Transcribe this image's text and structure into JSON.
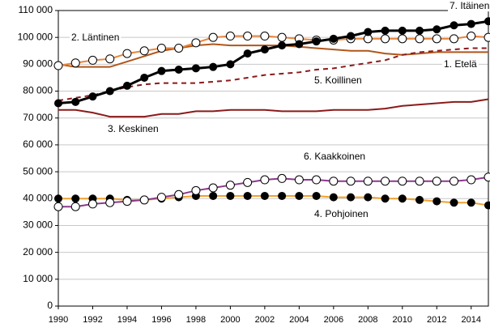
{
  "chart_data": {
    "type": "line",
    "x": [
      1990,
      1991,
      1992,
      1993,
      1994,
      1995,
      1996,
      1997,
      1998,
      1999,
      2000,
      2001,
      2002,
      2003,
      2004,
      2005,
      2006,
      2007,
      2008,
      2009,
      2010,
      2011,
      2012,
      2013,
      2014,
      2015
    ],
    "xlim": [
      1990,
      2015
    ],
    "xticks": [
      1990,
      1992,
      1994,
      1996,
      1998,
      2000,
      2002,
      2004,
      2006,
      2008,
      2010,
      2012,
      2014
    ],
    "ylim": [
      0,
      110000
    ],
    "yticks": [
      {
        "value": 0,
        "label": "0"
      },
      {
        "value": 10000,
        "label": "10 000"
      },
      {
        "value": 20000,
        "label": "20 000"
      },
      {
        "value": 30000,
        "label": "30 000"
      },
      {
        "value": 40000,
        "label": "40 000"
      },
      {
        "value": 50000,
        "label": "50 000"
      },
      {
        "value": 60000,
        "label": "60 000"
      },
      {
        "value": 70000,
        "label": "70 000"
      },
      {
        "value": 80000,
        "label": "80 000"
      },
      {
        "value": 90000,
        "label": "90 000"
      },
      {
        "value": 100000,
        "label": "100 000"
      },
      {
        "value": 110000,
        "label": "110 000"
      }
    ],
    "grid": true,
    "series": [
      {
        "name": "1. Etelä",
        "color": "#b0561c",
        "values": [
          90000,
          89000,
          89000,
          89000,
          91000,
          93000,
          95000,
          96000,
          97000,
          97500,
          97000,
          97000,
          97000,
          97000,
          96500,
          96000,
          95500,
          95000,
          95000,
          94000,
          93500,
          94000,
          94500,
          94500,
          94500,
          94500
        ]
      },
      {
        "name": "2. Läntinen",
        "color": "#e8853f",
        "marker": "open",
        "values": [
          89500,
          90500,
          91500,
          92000,
          94000,
          95000,
          96000,
          96000,
          98000,
          100000,
          100500,
          100500,
          100500,
          100000,
          99500,
          99000,
          99000,
          99500,
          99500,
          99500,
          99500,
          99500,
          99500,
          99500,
          100500,
          100000
        ]
      },
      {
        "name": "3. Keskinen",
        "color": "#8b1a1a",
        "values": [
          73000,
          73000,
          72000,
          70500,
          70500,
          70500,
          71500,
          71500,
          72500,
          72500,
          73000,
          73000,
          73000,
          72500,
          72500,
          72500,
          73000,
          73000,
          73000,
          73500,
          74500,
          75000,
          75500,
          76000,
          76000,
          77000
        ]
      },
      {
        "name": "4. Pohjoinen",
        "color": "#f0a030",
        "marker": "filled",
        "values": [
          40000,
          40000,
          40000,
          40000,
          39500,
          39500,
          40000,
          40500,
          41000,
          41000,
          41000,
          41000,
          41000,
          41000,
          41000,
          41000,
          40500,
          40500,
          40500,
          40000,
          40000,
          39500,
          39000,
          38500,
          38500,
          37500
        ]
      },
      {
        "name": "5. Koillinen",
        "color": "#8b1a1a",
        "dashed": true,
        "values": [
          76500,
          77500,
          78500,
          80000,
          81500,
          82500,
          83000,
          83000,
          83000,
          83500,
          84000,
          85000,
          86000,
          86500,
          87000,
          88000,
          88500,
          89500,
          90500,
          91500,
          93500,
          94500,
          95000,
          95500,
          96000,
          96000
        ]
      },
      {
        "name": "6. Kaakkoinen",
        "color": "#8b3a8b",
        "marker": "open",
        "values": [
          37000,
          37000,
          38000,
          38500,
          39000,
          39500,
          40500,
          41500,
          43000,
          44000,
          45000,
          46000,
          47000,
          47500,
          47000,
          47000,
          46500,
          46500,
          46500,
          46500,
          46500,
          46500,
          46500,
          46500,
          47000,
          48000
        ]
      },
      {
        "name": "7. Itäinen",
        "color": "#000000",
        "marker": "filled",
        "values": [
          75500,
          76000,
          78000,
          80000,
          82000,
          85000,
          87500,
          88000,
          88500,
          89000,
          90000,
          94000,
          95500,
          97000,
          97500,
          98500,
          99500,
          100500,
          102000,
          102500,
          102500,
          102500,
          103000,
          104500,
          105000,
          106000
        ]
      }
    ]
  }
}
